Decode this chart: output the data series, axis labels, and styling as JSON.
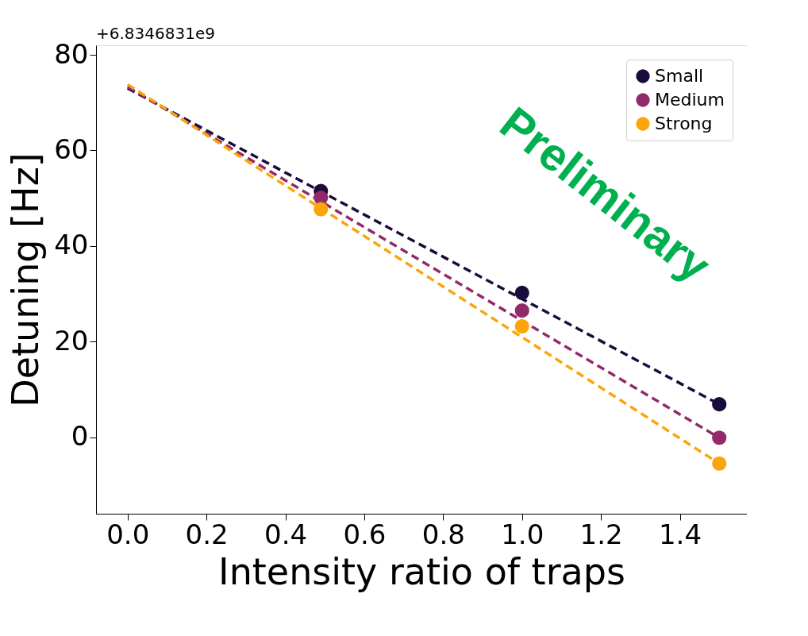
{
  "chart_data": {
    "type": "scatter",
    "xlabel": "Intensity ratio of traps",
    "ylabel": "Detuning [Hz]",
    "xlim": [
      -0.08,
      1.57
    ],
    "xticks": [
      {
        "value": 0,
        "label": "0.0"
      },
      0.2,
      0.4,
      0.6,
      0.8,
      {
        "value": 1,
        "label": "1.0"
      },
      1.2,
      1.4
    ],
    "ylim": [
      -16,
      82
    ],
    "yticks": [
      0,
      20,
      40,
      60,
      80
    ],
    "grid": false,
    "legend": "top right",
    "marker": "circle",
    "series": [
      {
        "name": "Small",
        "color": "#1a0b3d",
        "x": [
          0.49,
          1.0,
          1.5
        ],
        "values": [
          51.5,
          30.2,
          6.9
        ]
      },
      {
        "name": "Medium",
        "color": "#922a6a",
        "x": [
          0.49,
          1.0,
          1.5
        ],
        "values": [
          50.1,
          26.5,
          -0.1
        ]
      },
      {
        "name": "Strong",
        "color": "#fca50a",
        "x": [
          0.49,
          1.0,
          1.5
        ],
        "values": [
          47.7,
          23.2,
          -5.5
        ]
      },
      {
        "type": "line",
        "marker": "none",
        "line_style": "dashed",
        "color": "#1a0b3d",
        "x": [
          0.0,
          1.5
        ],
        "values": [
          73.0,
          6.9
        ]
      },
      {
        "type": "line",
        "marker": "none",
        "line_style": "dashed",
        "color": "#922a6a",
        "x": [
          0.0,
          1.5
        ],
        "values": [
          73.3,
          -0.1
        ]
      },
      {
        "type": "line",
        "marker": "none",
        "line_style": "dashed",
        "color": "#fca50a",
        "x": [
          0.0,
          1.5
        ],
        "values": [
          73.8,
          -5.5
        ]
      }
    ],
    "annotations": [
      "+6.8346831e9",
      "Preliminary"
    ]
  }
}
